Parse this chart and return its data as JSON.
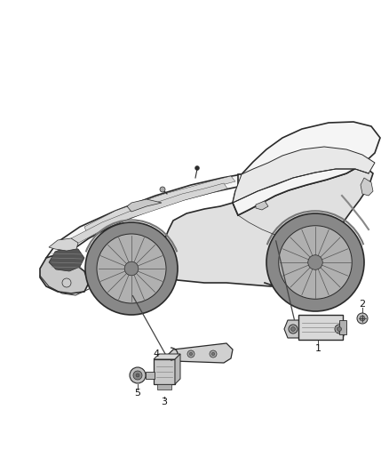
{
  "background_color": "#ffffff",
  "fig_width": 4.38,
  "fig_height": 5.33,
  "dpi": 100,
  "car_color": "#2a2a2a",
  "fill_light": "#f5f5f5",
  "fill_shade": "#e0e0e0",
  "fill_dark": "#c8c8c8",
  "label_fontsize": 8,
  "line_color": "#333333",
  "label_color": "#111111"
}
